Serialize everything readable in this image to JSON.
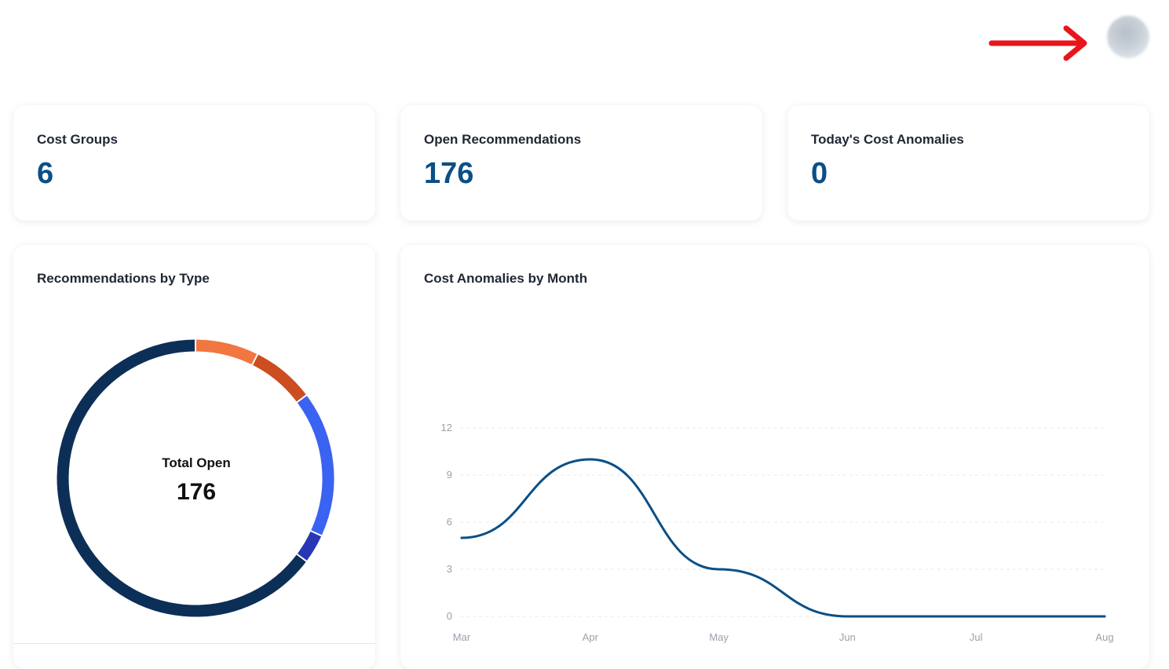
{
  "header": {
    "avatar_alt": "User profile"
  },
  "stats": [
    {
      "label": "Cost Groups",
      "value": "6"
    },
    {
      "label": "Open Recommendations",
      "value": "176"
    },
    {
      "label": "Today's Cost Anomalies",
      "value": "0"
    }
  ],
  "recommendations_panel": {
    "title": "Recommendations by Type",
    "center_label": "Total Open",
    "center_value": "176"
  },
  "anomalies_panel": {
    "title": "Cost Anomalies by Month"
  },
  "colors": {
    "accent": "#0b4f86",
    "donut_navy": "#0c2f57",
    "donut_orange": "#f2763f",
    "donut_rust": "#cc4d1f",
    "donut_blue": "#3b63f1",
    "donut_indigo": "#2837b5",
    "arrow_red": "#e8151b",
    "line": "#0b4f86"
  },
  "chart_data": [
    {
      "type": "pie",
      "title": "Recommendations by Type",
      "total": 176,
      "values": [
        13,
        13,
        30,
        6,
        114
      ],
      "colors": [
        "#f2763f",
        "#cc4d1f",
        "#3b63f1",
        "#2837b5",
        "#0c2f57"
      ]
    },
    {
      "type": "line",
      "title": "Cost Anomalies by Month",
      "categories": [
        "Mar",
        "Apr",
        "May",
        "Jun",
        "Jul",
        "Aug"
      ],
      "series": [
        {
          "values": [
            5,
            10,
            3,
            0,
            0,
            0
          ]
        }
      ],
      "ylim": [
        0,
        12
      ],
      "yticks": [
        0,
        3,
        6,
        9,
        12
      ],
      "grid": true
    }
  ]
}
